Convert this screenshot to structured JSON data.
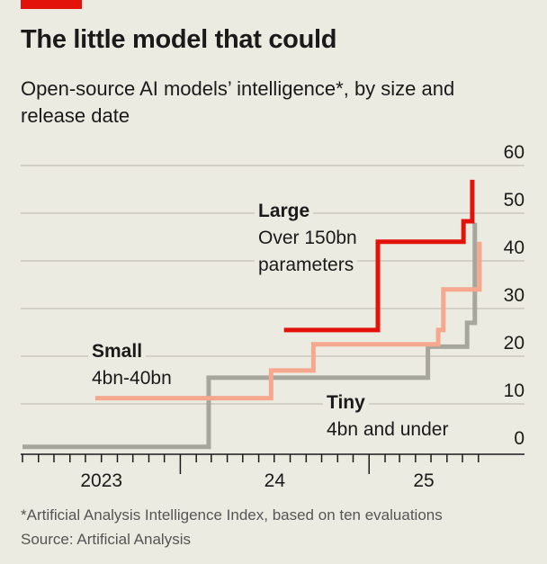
{
  "chart_data": {
    "type": "line",
    "step": true,
    "title": "The little model that could",
    "subtitle": "Open-source AI models’ intelligence*, by size and release date",
    "xlim": [
      "2023-03-01",
      "2025-09-01"
    ],
    "ylim": [
      0,
      60
    ],
    "yticks": [
      0,
      10,
      20,
      30,
      40,
      50,
      60
    ],
    "ytick_labels": [
      "0",
      "10",
      "20",
      "30",
      "40",
      "50",
      "60"
    ],
    "y_axis_side": "right",
    "xtick_labels": [
      {
        "label": "2023",
        "year": 2023
      },
      {
        "label": "24",
        "year": 2024
      },
      {
        "label": "25",
        "year": 2025
      }
    ],
    "grid": true,
    "series": [
      {
        "name": "Large",
        "sublabel": [
          "Over 150bn",
          "parameters"
        ],
        "color": "#E3120B",
        "points": [
          [
            "2024-07-20",
            25.5
          ],
          [
            "2025-01-18",
            44
          ],
          [
            "2025-07-03",
            48.3
          ],
          [
            "2025-07-20",
            57
          ]
        ]
      },
      {
        "name": "Small",
        "sublabel": [
          "4bn-40bn"
        ],
        "color": "#F5A88E",
        "points": [
          [
            "2023-07-20",
            11.2
          ],
          [
            "2024-06-25",
            17
          ],
          [
            "2024-09-15",
            22.5
          ],
          [
            "2025-05-15",
            25.5
          ],
          [
            "2025-05-25",
            34
          ],
          [
            "2025-08-03",
            44
          ]
        ]
      },
      {
        "name": "Tiny",
        "sublabel": [
          "4bn and under"
        ],
        "color": "#A6A69C",
        "points": [
          [
            "2023-03-01",
            1
          ],
          [
            "2024-02-25",
            15.5
          ],
          [
            "2025-04-25",
            22
          ],
          [
            "2025-07-10",
            27
          ],
          [
            "2025-07-25",
            48
          ]
        ]
      }
    ]
  },
  "colors": {
    "background": "#ECEBE2",
    "accent": "#E3120B"
  },
  "footnote": "*Artificial Analysis Intelligence Index, based on ten evaluations",
  "source": "Source: Artificial Analysis"
}
